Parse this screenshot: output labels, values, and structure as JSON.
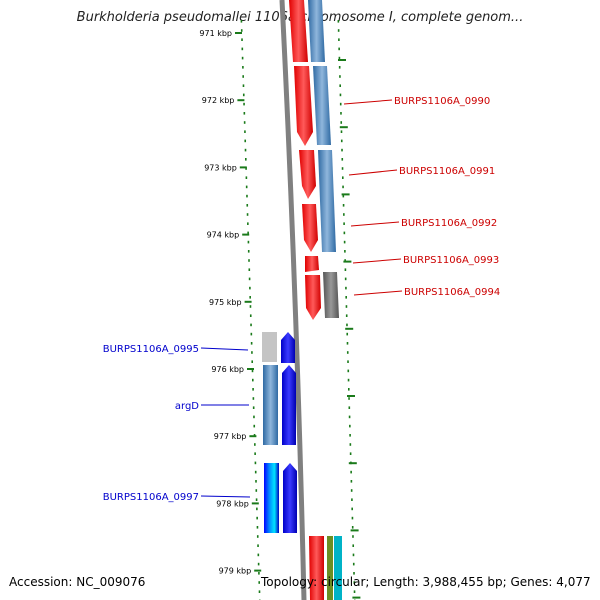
{
  "title": "Burkholderia pseudomallei 1106a chromosome I, complete genom...",
  "footer": {
    "accession": "Accession: NC_009076",
    "topology": "Topology: circular; Length: 3,988,455 bp; Genes: 4,077"
  },
  "colors": {
    "tick": "#1a7a1a",
    "red_gene": "#ff0000",
    "blue_gene": "#0000ff",
    "steel_blue": "#4a82b8",
    "gray": "#777777",
    "label_red": "#cc0000",
    "label_blue": "#0000cc"
  },
  "ticks": [
    "971 kbp",
    "972 kbp",
    "973 kbp",
    "974 kbp",
    "975 kbp",
    "976 kbp",
    "977 kbp",
    "978 kbp",
    "979 kbp"
  ],
  "gene_labels": [
    {
      "text": "BURPS1106A_0990",
      "strand": "forward"
    },
    {
      "text": "BURPS1106A_0991",
      "strand": "forward"
    },
    {
      "text": "BURPS1106A_0992",
      "strand": "forward"
    },
    {
      "text": "BURPS1106A_0993",
      "strand": "forward"
    },
    {
      "text": "BURPS1106A_0994",
      "strand": "forward"
    },
    {
      "text": "BURPS1106A_0995",
      "strand": "reverse"
    },
    {
      "text": "argD",
      "strand": "reverse"
    },
    {
      "text": "BURPS1106A_0997",
      "strand": "reverse"
    }
  ]
}
